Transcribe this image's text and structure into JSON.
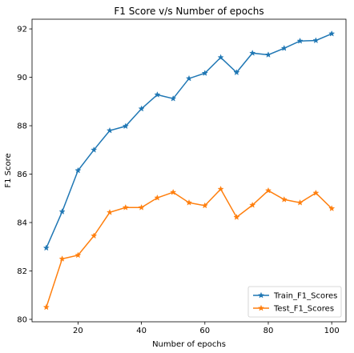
{
  "chart_data": {
    "type": "line",
    "title": "F1 Score v/s Number of epochs",
    "xlabel": "Number of epochs",
    "ylabel": "F1 Score",
    "xlim": [
      5.5,
      104.5
    ],
    "ylim": [
      79.9,
      92.4
    ],
    "xticks": [
      20,
      40,
      60,
      80,
      100
    ],
    "yticks": [
      80,
      82,
      84,
      86,
      88,
      90,
      92
    ],
    "grid": false,
    "legend_position": "lower-right",
    "x": [
      10,
      15,
      20,
      25,
      30,
      35,
      40,
      45,
      50,
      55,
      60,
      65,
      70,
      75,
      80,
      85,
      90,
      95,
      100
    ],
    "series": [
      {
        "name": "Train_F1_Scores",
        "color": "#1f77b4",
        "marker": "star",
        "values": [
          82.95,
          84.45,
          86.15,
          87.0,
          87.8,
          87.98,
          88.7,
          89.28,
          89.12,
          89.95,
          90.17,
          90.82,
          90.2,
          91.0,
          90.93,
          91.2,
          91.5,
          91.52,
          91.8
        ]
      },
      {
        "name": "Test_F1_Scores",
        "color": "#ff7f0e",
        "marker": "star",
        "values": [
          80.5,
          82.5,
          82.65,
          83.45,
          84.42,
          84.62,
          84.62,
          85.02,
          85.25,
          84.82,
          84.7,
          85.38,
          84.22,
          84.72,
          85.32,
          84.95,
          84.82,
          85.22,
          84.58
        ]
      }
    ]
  }
}
